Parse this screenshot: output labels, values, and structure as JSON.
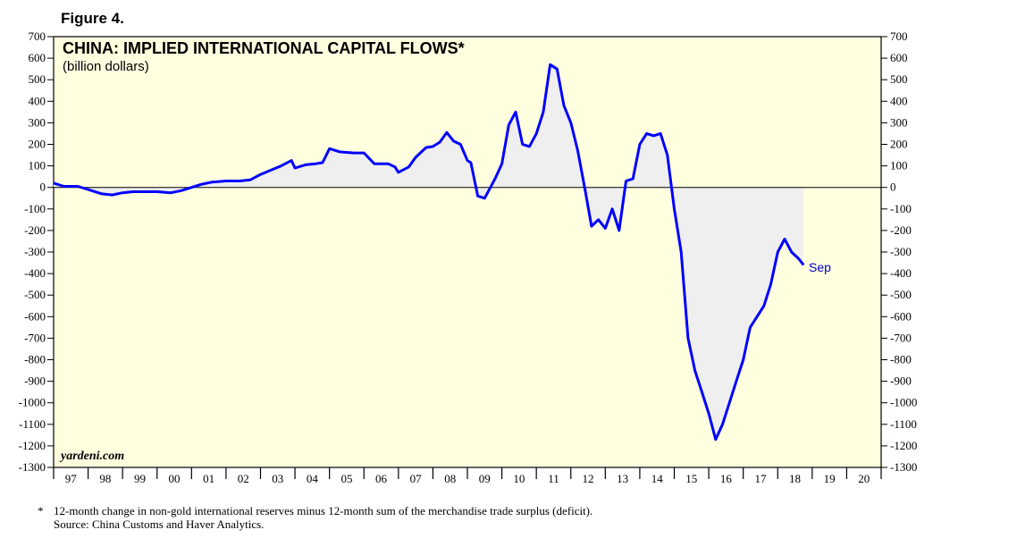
{
  "figure_label": "Figure 4.",
  "footnote": {
    "marker": "*",
    "definition": "12-month change in non-gold international reserves minus 12-month sum of the merchandise trade surplus (deficit).",
    "source": "Source: China Customs and Haver Analytics."
  },
  "colors": {
    "plot_background": "#ffffe0",
    "fill": "#efefef",
    "line": "#0000ff",
    "label": "#0000cc"
  },
  "chart_data": {
    "type": "area",
    "title": "CHINA: IMPLIED INTERNATIONAL CAPITAL FLOWS*",
    "subtitle": "(billion dollars)",
    "watermark": "yardeni.com",
    "end_label": "Sep",
    "xlabel": "",
    "ylabel": "billion dollars",
    "ylim": [
      -1300,
      700
    ],
    "xlim": [
      1997.0,
      2021.0
    ],
    "grid": false,
    "y_ticks": [
      700,
      600,
      500,
      400,
      300,
      200,
      100,
      0,
      -100,
      -200,
      -300,
      -400,
      -500,
      -600,
      -700,
      -800,
      -900,
      -1000,
      -1100,
      -1200,
      -1300
    ],
    "x_tick_labels": [
      "97",
      "98",
      "99",
      "00",
      "01",
      "02",
      "03",
      "04",
      "05",
      "06",
      "07",
      "08",
      "09",
      "10",
      "11",
      "12",
      "13",
      "14",
      "15",
      "16",
      "17",
      "18",
      "19",
      "20"
    ],
    "series": [
      {
        "name": "Implied international capital flows",
        "x": [
          1997.0,
          1997.3,
          1997.7,
          1998.0,
          1998.4,
          1998.7,
          1999.0,
          1999.3,
          1999.7,
          2000.0,
          2000.4,
          2000.7,
          2001.0,
          2001.3,
          2001.6,
          2002.0,
          2002.4,
          2002.7,
          2003.0,
          2003.3,
          2003.6,
          2003.9,
          2004.0,
          2004.3,
          2004.6,
          2004.8,
          2005.0,
          2005.3,
          2005.7,
          2006.0,
          2006.3,
          2006.7,
          2006.9,
          2007.0,
          2007.3,
          2007.5,
          2007.8,
          2008.0,
          2008.2,
          2008.4,
          2008.6,
          2008.8,
          2009.0,
          2009.1,
          2009.3,
          2009.5,
          2009.8,
          2010.0,
          2010.2,
          2010.4,
          2010.6,
          2010.8,
          2011.0,
          2011.2,
          2011.4,
          2011.6,
          2011.8,
          2012.0,
          2012.2,
          2012.4,
          2012.6,
          2012.8,
          2013.0,
          2013.2,
          2013.4,
          2013.6,
          2013.8,
          2014.0,
          2014.2,
          2014.4,
          2014.6,
          2014.8,
          2015.0,
          2015.2,
          2015.4,
          2015.6,
          2015.8,
          2016.0,
          2016.2,
          2016.4,
          2016.6,
          2016.8,
          2017.0,
          2017.2,
          2017.4,
          2017.6,
          2017.8,
          2018.0,
          2018.2,
          2018.4,
          2018.6,
          2018.75
        ],
        "values": [
          20,
          5,
          5,
          -10,
          -30,
          -35,
          -25,
          -20,
          -20,
          -20,
          -25,
          -15,
          0,
          15,
          25,
          30,
          30,
          35,
          60,
          80,
          100,
          125,
          90,
          105,
          110,
          115,
          180,
          165,
          160,
          160,
          110,
          110,
          95,
          70,
          95,
          140,
          185,
          190,
          210,
          255,
          215,
          200,
          125,
          115,
          -40,
          -50,
          40,
          110,
          290,
          350,
          200,
          190,
          250,
          350,
          570,
          550,
          380,
          300,
          170,
          0,
          -180,
          -150,
          -190,
          -100,
          -200,
          30,
          40,
          200,
          250,
          240,
          250,
          150,
          -100,
          -300,
          -700,
          -850,
          -950,
          -1050,
          -1170,
          -1100,
          -1000,
          -900,
          -800,
          -650,
          -600,
          -550,
          -450,
          -300,
          -240,
          -300,
          -330,
          -360
        ]
      }
    ]
  }
}
